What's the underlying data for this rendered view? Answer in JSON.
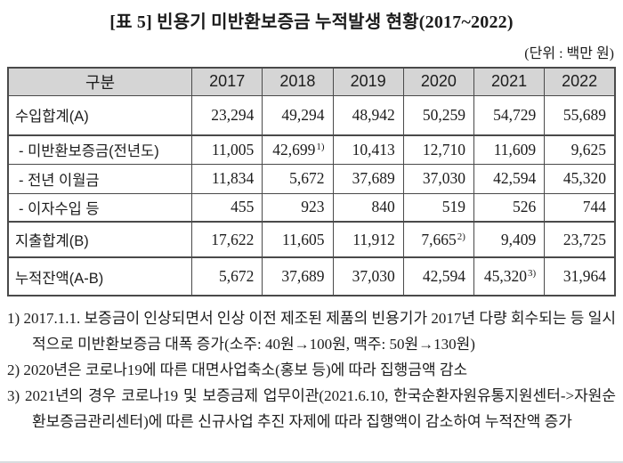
{
  "title": "[표 5] 빈용기 미반환보증금 누적발생 현황(2017~2022)",
  "unit_note": "(단위 : 백만 원)",
  "table": {
    "header": [
      "구분",
      "2017",
      "2018",
      "2019",
      "2020",
      "2021",
      "2022"
    ],
    "rows": [
      {
        "label": "수입합계(A)",
        "values": [
          "23,294",
          "49,294",
          "48,942",
          "50,259",
          "54,729",
          "55,689"
        ]
      },
      {
        "label": "- 미반환보증금(전년도)",
        "values": [
          "11,005",
          "42,699",
          "10,413",
          "12,710",
          "11,609",
          "9,625"
        ],
        "sup": "1)",
        "sup_col": "2018"
      },
      {
        "label": "- 전년 이월금",
        "values": [
          "11,834",
          "5,672",
          "37,689",
          "37,030",
          "42,594",
          "45,320"
        ]
      },
      {
        "label": "- 이자수입 등",
        "values": [
          "455",
          "923",
          "840",
          "519",
          "526",
          "744"
        ]
      },
      {
        "label": "지출합계(B)",
        "values": [
          "17,622",
          "11,605",
          "11,912",
          "7,665",
          "9,409",
          "23,725"
        ],
        "sup": "2)",
        "sup_col": "2020"
      },
      {
        "label": "누적잔액(A-B)",
        "values": [
          "5,672",
          "37,689",
          "37,030",
          "42,594",
          "45,320",
          "31,964"
        ],
        "sup": "3)",
        "sup_col": "2021"
      }
    ]
  },
  "footnotes": [
    {
      "marker": "1)",
      "text": "2017.1.1. 보증금이 인상되면서 인상 이전 제조된 제품의 빈용기가 2017년 다량 회수되는 등 일시적으로 미반환보증금 대폭 증가(소주: 40원→100원, 맥주: 50원→130원)"
    },
    {
      "marker": "2)",
      "text": "2020년은 코로나19에 따른 대면사업축소(홍보 등)에 따라 집행금액 감소"
    },
    {
      "marker": "3)",
      "text": "2021년의 경우 코로나19 및 보증금제 업무이관(2021.6.10, 한국순환자원유통지원센터->자원순환보증금관리센터)에 따른 신규사업 추진 자제에 따라 집행액이 감소하여 누적잔액 증가"
    }
  ],
  "colors": {
    "header_bg": "#d5d5d5",
    "border": "#4a4a4a",
    "text": "#1c1c1c",
    "bottom_edge": "#d9dcdf"
  }
}
